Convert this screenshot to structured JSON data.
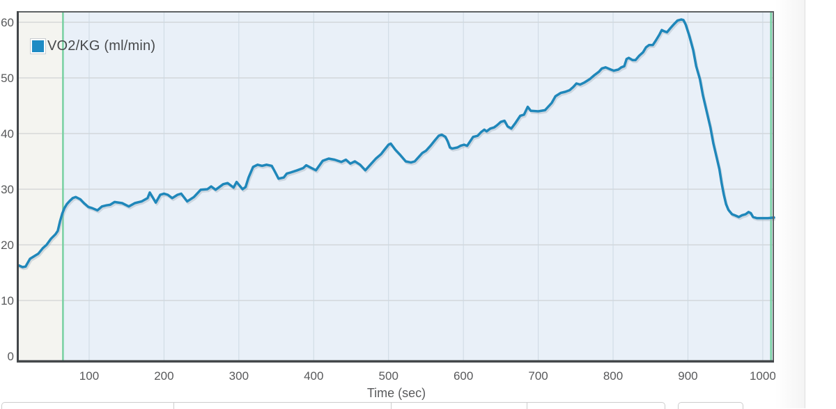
{
  "legend": {
    "label": "VO2/KG (ml/min)",
    "swatch_color": "#1e8bc4"
  },
  "chart_data": {
    "type": "line",
    "title": "",
    "xlabel": "Time (sec)",
    "ylabel": "",
    "xlim": [
      6,
      1015
    ],
    "ylim": [
      0,
      62
    ],
    "x_ticks": [
      100,
      200,
      300,
      400,
      500,
      600,
      700,
      800,
      900,
      1000
    ],
    "y_ticks": [
      0,
      10,
      20,
      30,
      40,
      50,
      60
    ],
    "grid": true,
    "legend_position": "top-left",
    "regions": [
      {
        "name": "pre-exercise-phase",
        "from": 6,
        "to": 65,
        "color": "#f4f4f0"
      },
      {
        "name": "exercise-phase",
        "from": 65,
        "to": 1015,
        "color": "#e9f0f8"
      }
    ],
    "markers": [
      {
        "name": "exercise-start-marker",
        "x": 65,
        "color": "#77d0a1"
      },
      {
        "name": "exercise-end-marker",
        "x": 1011,
        "color": "#77d0a1"
      }
    ],
    "series": [
      {
        "name": "VO2/KG (ml/min)",
        "color": "#1f87ba",
        "points": [
          [
            6,
            16.3
          ],
          [
            11,
            16.0
          ],
          [
            15,
            16.1
          ],
          [
            21,
            17.5
          ],
          [
            27,
            18.0
          ],
          [
            32,
            18.4
          ],
          [
            38,
            19.4
          ],
          [
            43,
            20.0
          ],
          [
            49,
            21.1
          ],
          [
            55,
            21.9
          ],
          [
            58,
            22.5
          ],
          [
            61,
            24.2
          ],
          [
            64,
            25.6
          ],
          [
            67,
            26.6
          ],
          [
            70,
            27.3
          ],
          [
            74,
            27.9
          ],
          [
            78,
            28.4
          ],
          [
            82,
            28.6
          ],
          [
            88,
            28.2
          ],
          [
            93,
            27.5
          ],
          [
            99,
            26.8
          ],
          [
            104,
            26.6
          ],
          [
            111,
            26.2
          ],
          [
            117,
            26.9
          ],
          [
            123,
            27.1
          ],
          [
            128,
            27.2
          ],
          [
            134,
            27.7
          ],
          [
            144,
            27.5
          ],
          [
            153,
            26.9
          ],
          [
            161,
            27.5
          ],
          [
            170,
            27.8
          ],
          [
            178,
            28.4
          ],
          [
            181,
            29.4
          ],
          [
            189,
            27.6
          ],
          [
            195,
            29.0
          ],
          [
            200,
            29.2
          ],
          [
            205,
            29.0
          ],
          [
            211,
            28.4
          ],
          [
            218,
            29.0
          ],
          [
            223,
            29.2
          ],
          [
            231,
            27.8
          ],
          [
            240,
            28.6
          ],
          [
            249,
            29.9
          ],
          [
            258,
            30.0
          ],
          [
            263,
            30.5
          ],
          [
            269,
            29.9
          ],
          [
            279,
            30.9
          ],
          [
            285,
            31.1
          ],
          [
            293,
            30.3
          ],
          [
            297,
            31.3
          ],
          [
            305,
            30.0
          ],
          [
            309,
            30.4
          ],
          [
            313,
            32.1
          ],
          [
            319,
            34.0
          ],
          [
            325,
            34.4
          ],
          [
            331,
            34.2
          ],
          [
            337,
            34.4
          ],
          [
            344,
            34.2
          ],
          [
            348,
            33.2
          ],
          [
            353,
            31.9
          ],
          [
            360,
            32.1
          ],
          [
            364,
            32.8
          ],
          [
            369,
            33.0
          ],
          [
            378,
            33.4
          ],
          [
            386,
            33.8
          ],
          [
            390,
            34.3
          ],
          [
            397,
            33.8
          ],
          [
            403,
            33.4
          ],
          [
            412,
            35.1
          ],
          [
            420,
            35.5
          ],
          [
            428,
            35.3
          ],
          [
            437,
            34.9
          ],
          [
            443,
            35.3
          ],
          [
            449,
            34.6
          ],
          [
            455,
            35.0
          ],
          [
            462,
            34.4
          ],
          [
            469,
            33.4
          ],
          [
            477,
            34.6
          ],
          [
            483,
            35.5
          ],
          [
            490,
            36.3
          ],
          [
            494,
            37.0
          ],
          [
            500,
            38.0
          ],
          [
            503,
            38.2
          ],
          [
            509,
            37.1
          ],
          [
            516,
            36.1
          ],
          [
            523,
            35.0
          ],
          [
            530,
            34.8
          ],
          [
            535,
            35.0
          ],
          [
            541,
            35.9
          ],
          [
            545,
            36.5
          ],
          [
            550,
            36.9
          ],
          [
            556,
            37.8
          ],
          [
            562,
            38.8
          ],
          [
            567,
            39.6
          ],
          [
            571,
            39.8
          ],
          [
            576,
            39.4
          ],
          [
            579,
            38.6
          ],
          [
            582,
            37.5
          ],
          [
            585,
            37.3
          ],
          [
            592,
            37.5
          ],
          [
            596,
            37.8
          ],
          [
            601,
            38.0
          ],
          [
            605,
            37.8
          ],
          [
            610,
            38.8
          ],
          [
            613,
            39.4
          ],
          [
            619,
            39.6
          ],
          [
            624,
            40.3
          ],
          [
            628,
            40.7
          ],
          [
            631,
            40.4
          ],
          [
            636,
            40.9
          ],
          [
            641,
            41.1
          ],
          [
            645,
            41.5
          ],
          [
            650,
            42.1
          ],
          [
            655,
            42.3
          ],
          [
            659,
            41.3
          ],
          [
            664,
            40.9
          ],
          [
            669,
            41.8
          ],
          [
            676,
            43.2
          ],
          [
            681,
            43.4
          ],
          [
            686,
            44.8
          ],
          [
            690,
            44.1
          ],
          [
            700,
            44.0
          ],
          [
            709,
            44.2
          ],
          [
            718,
            45.5
          ],
          [
            723,
            46.7
          ],
          [
            730,
            47.3
          ],
          [
            736,
            47.5
          ],
          [
            742,
            47.8
          ],
          [
            747,
            48.4
          ],
          [
            751,
            49.0
          ],
          [
            756,
            48.8
          ],
          [
            762,
            49.2
          ],
          [
            769,
            49.8
          ],
          [
            775,
            50.5
          ],
          [
            781,
            51.1
          ],
          [
            785,
            51.7
          ],
          [
            790,
            51.9
          ],
          [
            797,
            51.5
          ],
          [
            801,
            51.3
          ],
          [
            807,
            51.5
          ],
          [
            811,
            51.9
          ],
          [
            815,
            52.1
          ],
          [
            818,
            53.4
          ],
          [
            821,
            53.6
          ],
          [
            826,
            53.2
          ],
          [
            830,
            53.2
          ],
          [
            835,
            54.0
          ],
          [
            840,
            54.6
          ],
          [
            844,
            55.5
          ],
          [
            848,
            55.9
          ],
          [
            853,
            55.9
          ],
          [
            857,
            56.7
          ],
          [
            862,
            57.8
          ],
          [
            865,
            58.6
          ],
          [
            868,
            58.4
          ],
          [
            872,
            58.2
          ],
          [
            877,
            59.0
          ],
          [
            881,
            59.6
          ],
          [
            886,
            60.3
          ],
          [
            891,
            60.5
          ],
          [
            894,
            60.4
          ],
          [
            897,
            59.6
          ],
          [
            902,
            57.5
          ],
          [
            907,
            55.0
          ],
          [
            911,
            52.1
          ],
          [
            916,
            49.8
          ],
          [
            920,
            46.9
          ],
          [
            925,
            44.0
          ],
          [
            930,
            41.1
          ],
          [
            934,
            38.2
          ],
          [
            937,
            36.5
          ],
          [
            942,
            33.6
          ],
          [
            945,
            31.1
          ],
          [
            948,
            29.0
          ],
          [
            951,
            27.3
          ],
          [
            954,
            26.3
          ],
          [
            959,
            25.5
          ],
          [
            963,
            25.3
          ],
          [
            968,
            25.0
          ],
          [
            972,
            25.3
          ],
          [
            977,
            25.5
          ],
          [
            981,
            25.9
          ],
          [
            984,
            25.7
          ],
          [
            987,
            25.0
          ],
          [
            992,
            24.8
          ],
          [
            998,
            24.8
          ],
          [
            1007,
            24.8
          ],
          [
            1015,
            24.9
          ]
        ]
      }
    ],
    "colors": {
      "h_grid": "#c8cacb",
      "v_grid": "#cdd9e2",
      "axis_dark": "#43474a",
      "border_light": "#5e6264",
      "tick_label": "#58595b",
      "line_shadow": "#9fb0bc"
    }
  }
}
